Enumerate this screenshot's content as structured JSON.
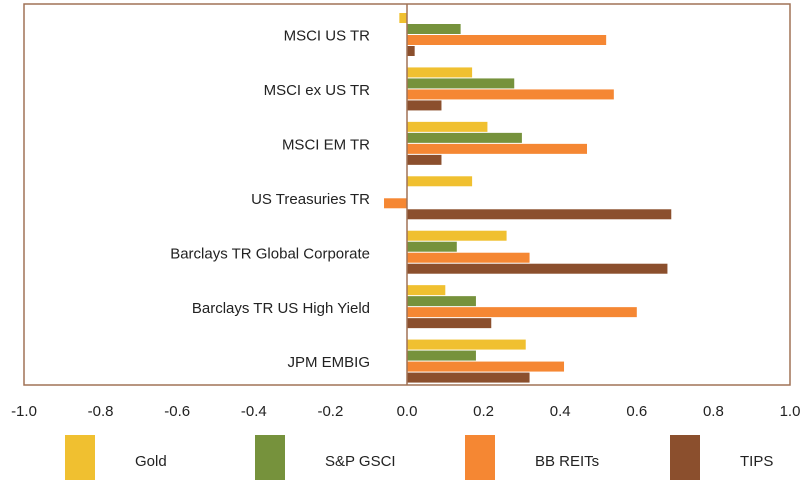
{
  "chart_data": {
    "type": "hbar",
    "categories": [
      "MSCI US TR",
      "MSCI ex US TR",
      "MSCI EM TR",
      "US Treasuries TR",
      "Barclays TR Global Corporate",
      "Barclays TR US High Yield",
      "JPM EMBIG"
    ],
    "series": [
      {
        "name": "Gold",
        "color": "#f0c030",
        "values": [
          -0.02,
          0.17,
          0.21,
          0.17,
          0.26,
          0.1,
          0.31
        ]
      },
      {
        "name": "S&P GSCI",
        "color": "#76923c",
        "values": [
          0.14,
          0.28,
          0.3,
          0.0,
          0.13,
          0.18,
          0.18
        ]
      },
      {
        "name": "BB REITs",
        "color": "#f58733",
        "values": [
          0.52,
          0.54,
          0.47,
          -0.06,
          0.32,
          0.6,
          0.41
        ]
      },
      {
        "name": "TIPS",
        "color": "#8b4f2d",
        "values": [
          0.02,
          0.09,
          0.09,
          0.69,
          0.68,
          0.22,
          0.32
        ]
      }
    ],
    "xlim": [
      -1,
      1
    ],
    "xticks": [
      {
        "value": -1,
        "label": "-1.0"
      },
      -0.8,
      -0.6,
      -0.4,
      -0.2,
      {
        "value": 0,
        "label": "0.0"
      },
      0.2,
      0.4,
      0.6,
      0.8,
      {
        "value": 1,
        "label": "1.0"
      }
    ],
    "legend": "bottom"
  }
}
